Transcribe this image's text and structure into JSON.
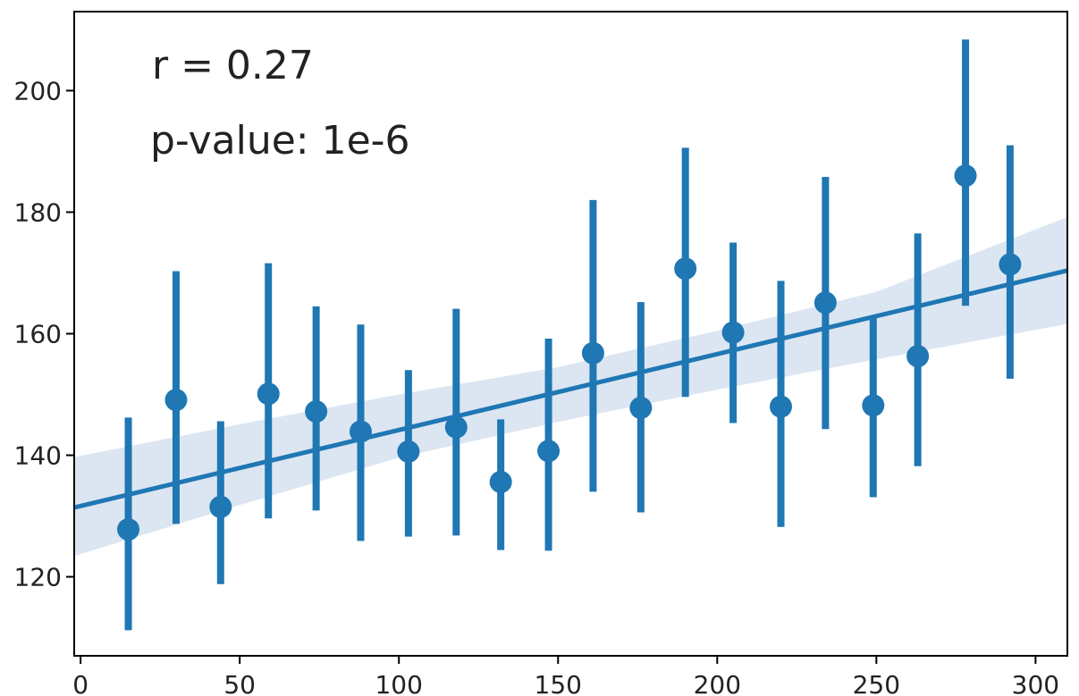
{
  "chart_data": {
    "type": "scatter",
    "xlim": [
      -2,
      310
    ],
    "ylim": [
      107,
      213
    ],
    "xticks": [
      0,
      50,
      100,
      150,
      200,
      250,
      300
    ],
    "yticks": [
      120,
      140,
      160,
      180,
      200
    ],
    "grid": false,
    "color": "#1f77b4",
    "band_color": "#dbe6f2",
    "annotations": {
      "r": "r = 0.27",
      "p": "p-value: 1e-6"
    },
    "points": [
      {
        "x": 15,
        "y": 127.8,
        "lo": 111.2,
        "hi": 146.2
      },
      {
        "x": 30,
        "y": 149.1,
        "lo": 128.7,
        "hi": 170.3
      },
      {
        "x": 44,
        "y": 131.5,
        "lo": 118.8,
        "hi": 145.6
      },
      {
        "x": 59,
        "y": 150.1,
        "lo": 129.6,
        "hi": 171.6
      },
      {
        "x": 74,
        "y": 147.2,
        "lo": 130.9,
        "hi": 164.5
      },
      {
        "x": 88,
        "y": 143.9,
        "lo": 125.9,
        "hi": 161.5
      },
      {
        "x": 103,
        "y": 140.6,
        "lo": 126.6,
        "hi": 154.0
      },
      {
        "x": 118,
        "y": 144.6,
        "lo": 126.8,
        "hi": 164.1
      },
      {
        "x": 132,
        "y": 135.6,
        "lo": 124.4,
        "hi": 145.9
      },
      {
        "x": 147,
        "y": 140.7,
        "lo": 124.3,
        "hi": 159.2
      },
      {
        "x": 161,
        "y": 156.8,
        "lo": 134.0,
        "hi": 182.0
      },
      {
        "x": 176,
        "y": 147.8,
        "lo": 130.6,
        "hi": 165.2
      },
      {
        "x": 190,
        "y": 170.7,
        "lo": 149.6,
        "hi": 190.6
      },
      {
        "x": 205,
        "y": 160.2,
        "lo": 145.3,
        "hi": 175.0
      },
      {
        "x": 220,
        "y": 148.0,
        "lo": 128.2,
        "hi": 168.7
      },
      {
        "x": 234,
        "y": 165.1,
        "lo": 144.3,
        "hi": 185.8
      },
      {
        "x": 249,
        "y": 148.2,
        "lo": 133.1,
        "hi": 162.8
      },
      {
        "x": 263,
        "y": 156.3,
        "lo": 138.2,
        "hi": 176.5
      },
      {
        "x": 278,
        "y": 186.0,
        "lo": 164.6,
        "hi": 208.4
      },
      {
        "x": 292,
        "y": 171.4,
        "lo": 152.6,
        "hi": 191.0
      }
    ],
    "regression": {
      "x": [
        -2,
        310
      ],
      "y": [
        131.4,
        170.4
      ]
    },
    "confidence_band": {
      "x": [
        -2,
        50,
        100,
        150,
        200,
        250,
        310
      ],
      "lo": [
        123.4,
        131.8,
        139.6,
        145.5,
        150.8,
        155.8,
        161.6
      ],
      "hi": [
        139.7,
        145.1,
        150.0,
        154.5,
        160.5,
        166.9,
        179.2
      ]
    }
  }
}
